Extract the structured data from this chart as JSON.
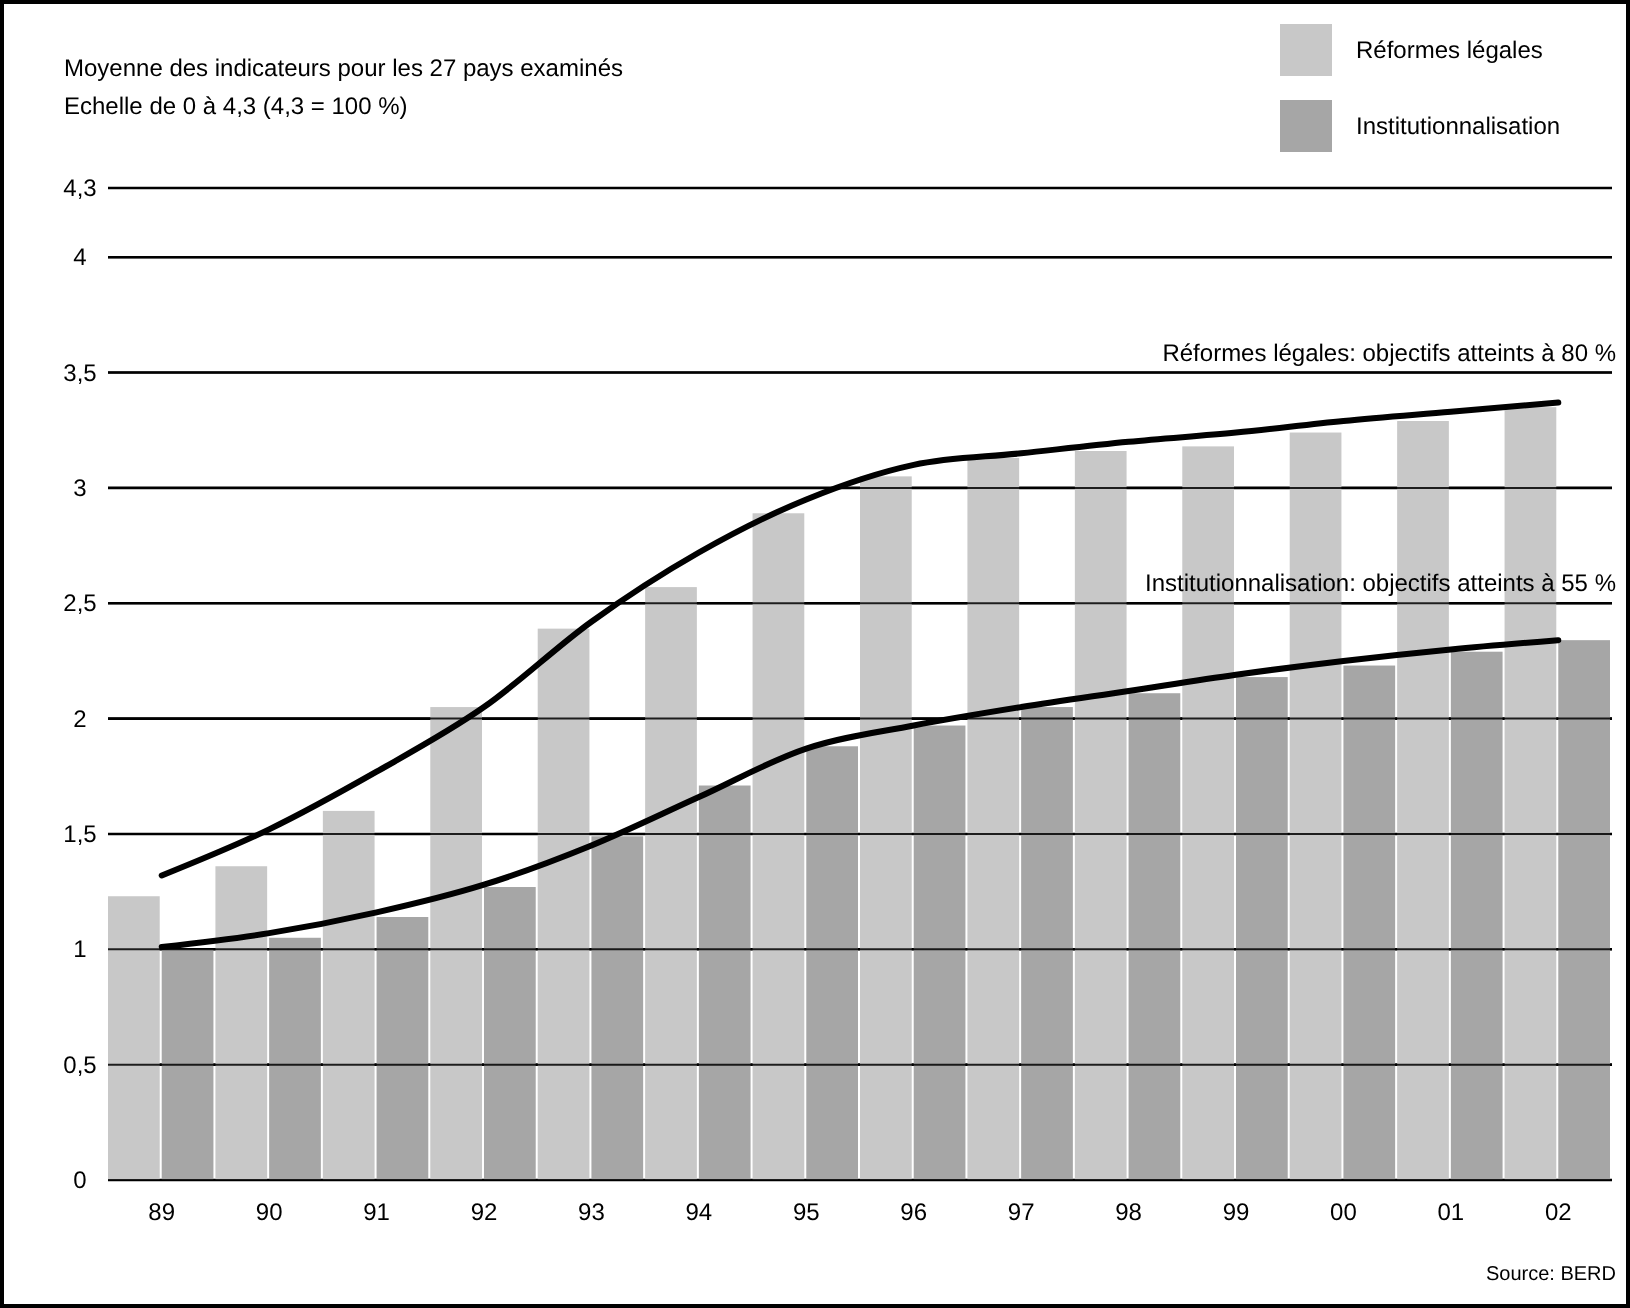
{
  "chart_data": {
    "type": "bar",
    "title": "Moyenne des indicateurs pour les 27 pays examinés",
    "subtitle": "Echelle de 0 à 4,3 (4,3 = 100 %)",
    "categories": [
      "89",
      "90",
      "91",
      "92",
      "93",
      "94",
      "95",
      "96",
      "97",
      "98",
      "99",
      "00",
      "01",
      "02"
    ],
    "series": [
      {
        "name": "Réformes légales",
        "color": "#c8c8c8",
        "values": [
          1.23,
          1.36,
          1.6,
          2.05,
          2.39,
          2.57,
          2.89,
          3.05,
          3.13,
          3.16,
          3.18,
          3.24,
          3.29,
          3.35
        ]
      },
      {
        "name": "Institutionnalisation",
        "color": "#a6a6a6",
        "values": [
          1.0,
          1.05,
          1.14,
          1.27,
          1.49,
          1.71,
          1.88,
          1.97,
          2.05,
          2.11,
          2.18,
          2.23,
          2.29,
          2.34
        ]
      },
      {
        "type": "line",
        "color": "#000000",
        "values": [
          1.32,
          1.52,
          1.77,
          2.05,
          2.42,
          2.72,
          2.95,
          3.1,
          3.15,
          3.2,
          3.24,
          3.29,
          3.33,
          3.37
        ]
      },
      {
        "type": "line",
        "color": "#000000",
        "values": [
          1.01,
          1.07,
          1.16,
          1.28,
          1.45,
          1.66,
          1.87,
          1.97,
          2.05,
          2.12,
          2.19,
          2.25,
          2.3,
          2.34
        ]
      }
    ],
    "ylim": [
      0,
      4.3
    ],
    "yticks": [
      {
        "value": 0,
        "label": "0"
      },
      {
        "value": 0.5,
        "label": "0,5"
      },
      {
        "value": 1,
        "label": "1"
      },
      {
        "value": 1.5,
        "label": "1,5"
      },
      {
        "value": 2,
        "label": "2"
      },
      {
        "value": 2.5,
        "label": "2,5"
      },
      {
        "value": 3,
        "label": "3"
      },
      {
        "value": 3.5,
        "label": "3,5"
      },
      {
        "value": 4,
        "label": "4"
      },
      {
        "value": 4.3,
        "label": "4,3"
      }
    ],
    "grid": "y",
    "legend": "top right",
    "line_style": "solid",
    "marker": "none",
    "annotations": [
      "Réformes légales: objectifs atteints à 80 %",
      "Institutionnalisation: objectifs atteints à 55 %",
      "Source: BERD"
    ]
  }
}
